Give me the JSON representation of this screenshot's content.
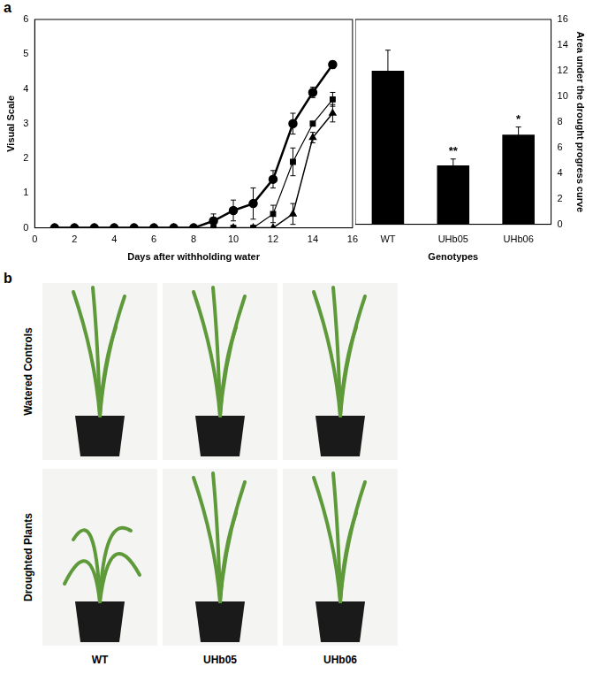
{
  "panel_labels": [
    "a",
    "b"
  ],
  "chart_data": [
    {
      "type": "line",
      "x_label": "Days after withholding water",
      "y_label": "Visual Scale",
      "x": [
        1,
        2,
        3,
        4,
        5,
        6,
        7,
        8,
        9,
        10,
        11,
        12,
        13,
        14,
        15
      ],
      "series": [
        {
          "color": "#000000",
          "marker": "circle",
          "values": [
            0,
            0,
            0,
            0,
            0,
            0,
            0,
            0,
            0.2,
            0.5,
            0.7,
            1.4,
            3.0,
            3.9,
            4.7
          ],
          "errors": [
            null,
            null,
            null,
            null,
            null,
            null,
            null,
            null,
            0.2,
            0.3,
            0.45,
            0.25,
            0.3,
            0.15,
            0.1
          ]
        },
        {
          "color": "#000000",
          "marker": "square",
          "values": [
            0,
            0,
            0,
            0,
            0,
            0,
            0,
            0,
            0,
            0,
            0,
            0.4,
            1.9,
            3.0,
            3.7
          ],
          "errors": [
            null,
            null,
            null,
            null,
            null,
            null,
            null,
            null,
            null,
            null,
            null,
            0.25,
            0.4,
            0.05,
            0.2
          ]
        },
        {
          "color": "#000000",
          "marker": "triangle",
          "values": [
            0,
            0,
            0,
            0,
            0,
            0,
            0,
            0,
            0,
            0,
            0,
            0,
            0.4,
            2.6,
            3.3
          ],
          "errors": [
            null,
            null,
            null,
            null,
            null,
            null,
            null,
            null,
            null,
            null,
            null,
            null,
            0.3,
            0.15,
            0.25
          ]
        }
      ],
      "xlim": [
        0,
        16
      ],
      "xticks": [
        0,
        2,
        4,
        6,
        8,
        10,
        12,
        14,
        16
      ],
      "ylim": [
        0,
        6
      ],
      "yticks": [
        0,
        1,
        2,
        3,
        4,
        5,
        6
      ],
      "grid": false
    },
    {
      "type": "bar",
      "x_label": "Genotypes",
      "y_label": "Area under the drought progress curve",
      "categories": [
        "WT",
        "UHb05",
        "UHb06"
      ],
      "values": [
        12.0,
        4.6,
        7.0
      ],
      "errors": [
        1.6,
        0.5,
        0.6
      ],
      "significance": [
        null,
        "**",
        "*"
      ],
      "color": "#000000",
      "ylim": [
        0,
        16
      ],
      "yticks": [
        0,
        2,
        4,
        6,
        8,
        10,
        12,
        14,
        16
      ],
      "grid": false
    }
  ],
  "photos": {
    "rows": [
      "Watered Controls",
      "Droughted Plants"
    ],
    "columns": [
      "WT",
      "UHb05",
      "UHb06"
    ]
  }
}
